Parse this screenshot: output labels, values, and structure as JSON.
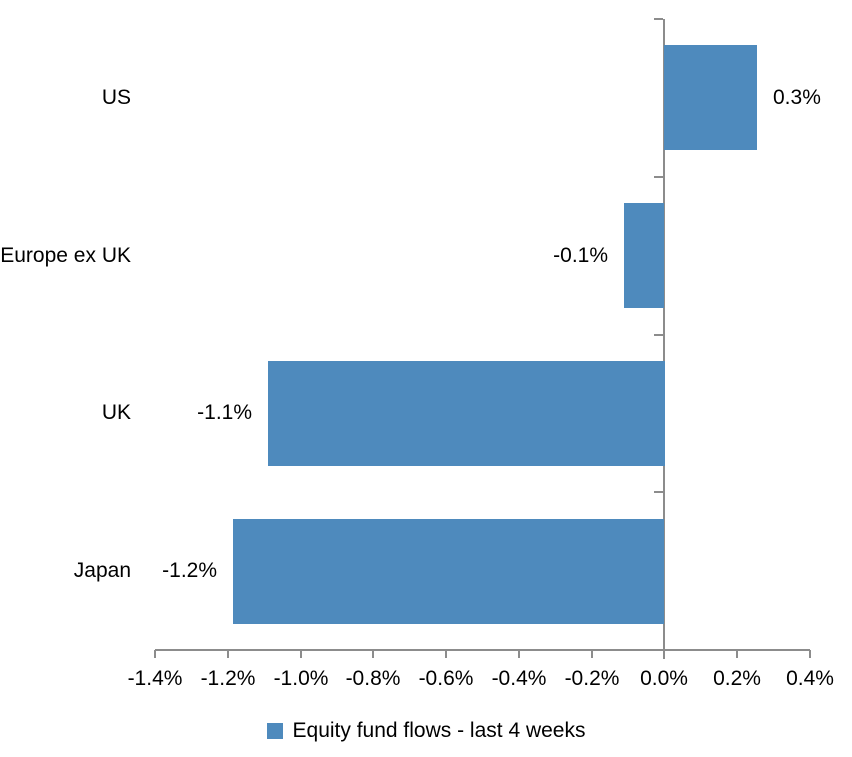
{
  "chart_data": {
    "type": "bar",
    "orientation": "horizontal",
    "title": "",
    "xlabel": "",
    "ylabel": "",
    "categories": [
      "US",
      "Europe ex UK",
      "UK",
      "Japan"
    ],
    "values": [
      0.3,
      -0.1,
      -1.1,
      -1.2
    ],
    "plotted_values": [
      0.255,
      -0.11,
      -1.09,
      -1.185
    ],
    "value_labels": [
      "0.3%",
      "-0.1%",
      "-1.1%",
      "-1.2%"
    ],
    "series_name": "Equity fund flows - last 4 weeks",
    "xlim": [
      -1.4,
      0.4
    ],
    "x_tick_step": 0.2,
    "x_tick_labels": [
      "-1.4%",
      "-1.2%",
      "-1.0%",
      "-0.8%",
      "-0.6%",
      "-0.4%",
      "-0.2%",
      "0.0%",
      "0.2%",
      "0.4%"
    ],
    "grid": false,
    "legend_position": "bottom",
    "bar_color": "#4E8ABD",
    "axis_color": "#8C8C8C",
    "text_color": "#000000",
    "background": "#FFFFFF"
  }
}
